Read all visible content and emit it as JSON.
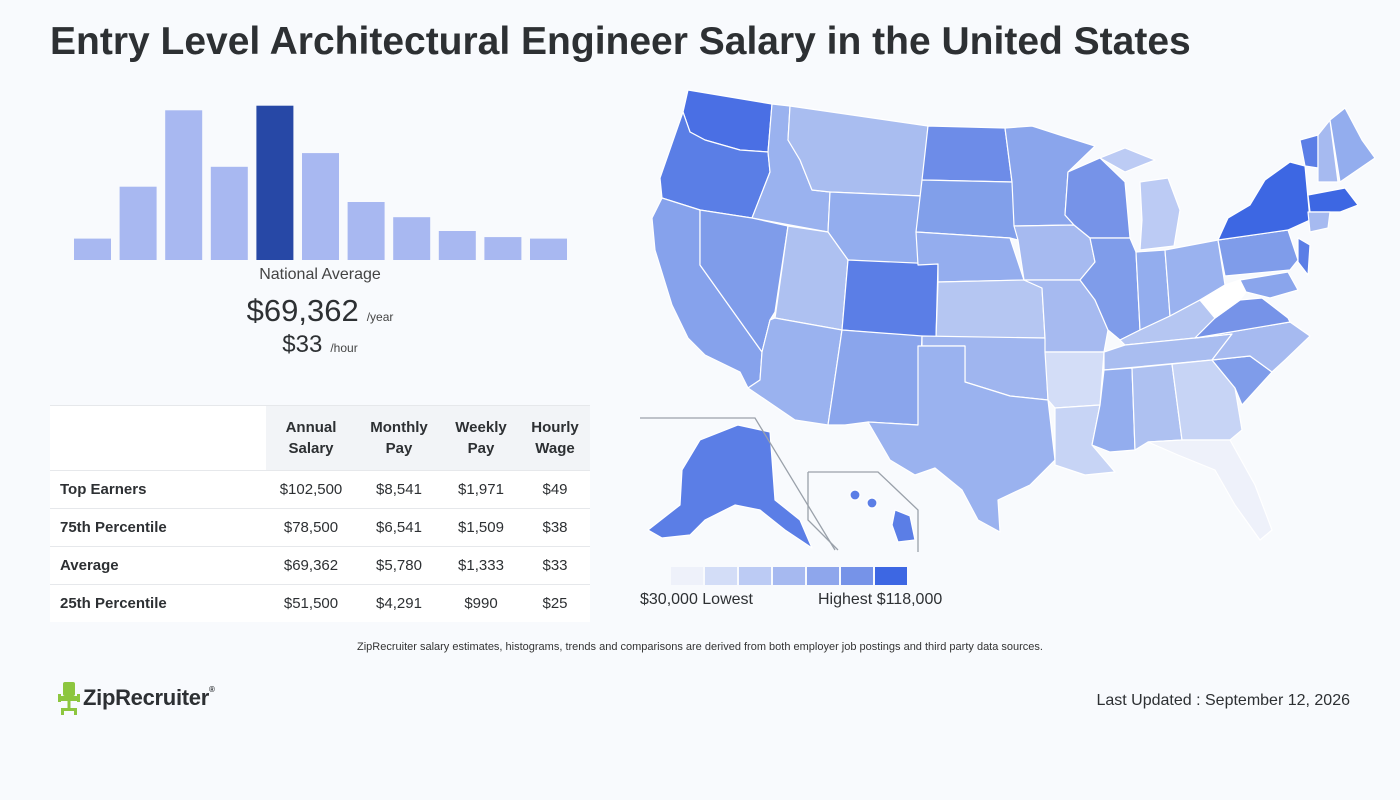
{
  "title": "Entry Level Architectural Engineer Salary in the United States",
  "summary": {
    "label": "National Average",
    "annual": "$69,362",
    "annual_unit": "/year",
    "hourly": "$33",
    "hourly_unit": "/hour"
  },
  "chart_data": {
    "type": "bar",
    "highlight_index": 4,
    "values": [
      14,
      48,
      98,
      61,
      101,
      70,
      38,
      28,
      19,
      15,
      14
    ],
    "colors": {
      "bar": "#a8b8f1",
      "highlight": "#2748a6"
    }
  },
  "table": {
    "headers": [
      [
        "",
        ""
      ],
      [
        "Annual",
        "Salary"
      ],
      [
        "Monthly",
        "Pay"
      ],
      [
        "Weekly",
        "Pay"
      ],
      [
        "Hourly",
        "Wage"
      ]
    ],
    "rows": [
      {
        "label": "Top Earners",
        "values": [
          "$102,500",
          "$8,541",
          "$1,971",
          "$49"
        ]
      },
      {
        "label": "75th Percentile",
        "values": [
          "$78,500",
          "$6,541",
          "$1,509",
          "$38"
        ]
      },
      {
        "label": "Average",
        "values": [
          "$69,362",
          "$5,780",
          "$1,333",
          "$33"
        ]
      },
      {
        "label": "25th Percentile",
        "values": [
          "$51,500",
          "$4,291",
          "$990",
          "$25"
        ]
      }
    ]
  },
  "legend": {
    "lowest": "$30,000 Lowest",
    "highest": "Highest $118,000",
    "colors": [
      "#eef1fa",
      "#d3ddf7",
      "#bccbf4",
      "#a6b9f0",
      "#8ea6ec",
      "#7693e8",
      "#3d67e3"
    ]
  },
  "disclaimer": "ZipRecruiter salary estimates, histograms, trends and comparisons are derived from both employer job postings and third party data sources.",
  "logo": {
    "text": "ZipRecruiter",
    "reg": "®",
    "color": "#8dc63f"
  },
  "last_updated": "Last Updated : September 12, 2026"
}
